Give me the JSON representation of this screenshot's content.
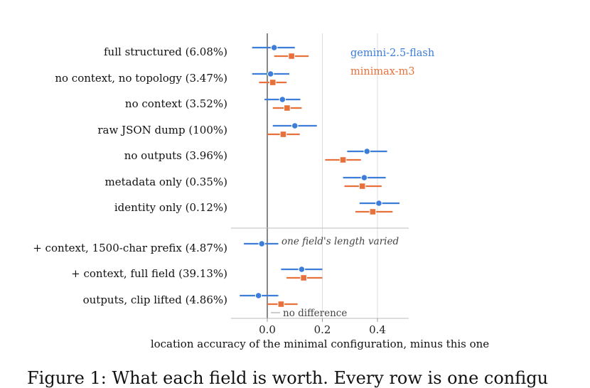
{
  "chart_data": {
    "type": "scatter",
    "xlabel": "location accuracy of the minimal configuration, minus this one",
    "xlim": [
      -0.13,
      0.51
    ],
    "xticks": [
      0.0,
      0.2,
      0.4
    ],
    "xtick_labels": [
      "0.0",
      "0.2",
      "0.4"
    ],
    "grid": "vertical",
    "legend": "top-right",
    "categories": [
      "full structured  (6.08%)",
      "no context, no topology  (3.47%)",
      "no context  (3.52%)",
      "raw JSON dump  (100%)",
      "no outputs  (3.96%)",
      "metadata only  (0.35%)",
      "identity only  (0.12%)",
      "+ context, 1500-char prefix  (4.87%)",
      "+ context, full field  (39.13%)",
      "outputs, clip lifted  (4.86%)"
    ],
    "series": [
      {
        "name": "gemini-2.5-flash",
        "color": "#3b7dd8",
        "marker": "circle",
        "values": [
          0.025,
          0.012,
          0.055,
          0.1,
          0.362,
          0.352,
          0.405,
          -0.02,
          0.125,
          -0.032
        ],
        "ci_low": [
          -0.055,
          -0.055,
          -0.01,
          0.02,
          0.29,
          0.275,
          0.335,
          -0.085,
          0.05,
          -0.1
        ],
        "ci_high": [
          0.1,
          0.08,
          0.12,
          0.18,
          0.435,
          0.43,
          0.48,
          0.04,
          0.2,
          0.04
        ]
      },
      {
        "name": "minimax-m3",
        "color": "#e8703a",
        "marker": "square",
        "values": [
          0.088,
          0.02,
          0.072,
          0.058,
          0.275,
          0.345,
          0.383,
          null,
          0.132,
          0.05
        ],
        "ci_low": [
          0.025,
          -0.03,
          0.02,
          0.0,
          0.21,
          0.28,
          0.32,
          null,
          0.07,
          0.0
        ],
        "ci_high": [
          0.15,
          0.07,
          0.125,
          0.118,
          0.34,
          0.415,
          0.455,
          null,
          0.2,
          0.11
        ]
      }
    ],
    "groups": [
      {
        "rows": [
          0,
          1,
          2,
          3,
          4,
          5,
          6
        ]
      },
      {
        "rows": [
          7,
          8,
          9
        ],
        "annotation": "one field's length varied"
      }
    ],
    "reference_line": {
      "x": 0.0,
      "label": "no difference"
    }
  },
  "caption": "Figure 1: What each field is worth. Every row is one configu"
}
